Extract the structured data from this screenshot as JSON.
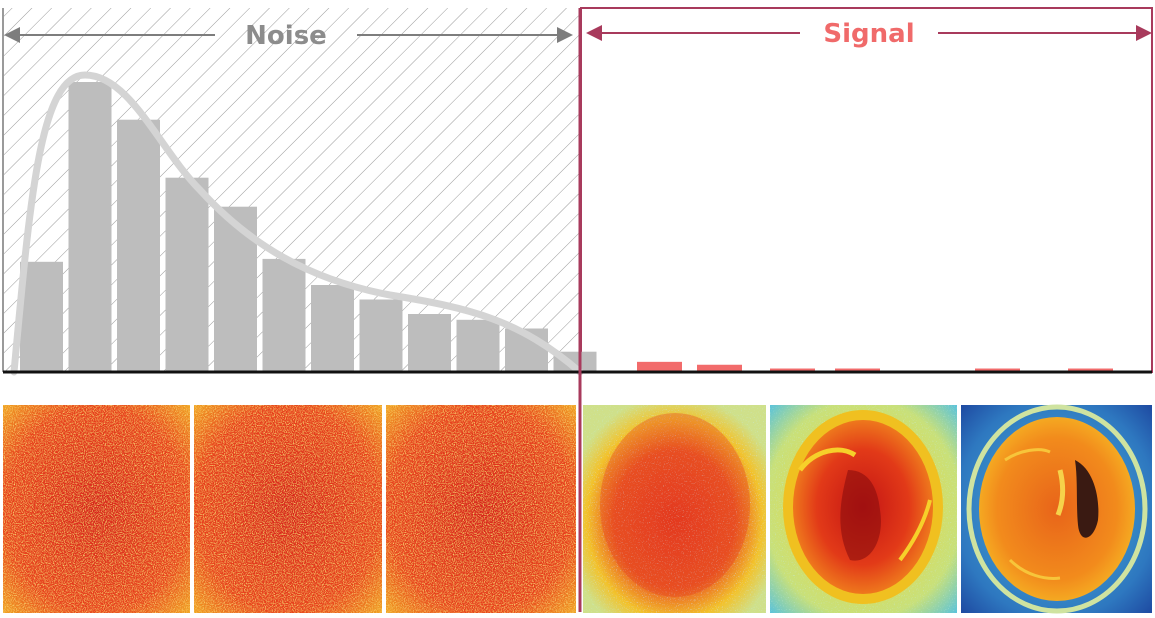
{
  "labels": {
    "noise": "Noise",
    "signal": "Signal"
  },
  "colors": {
    "noise_label": "#8c8c8c",
    "noise_arrow": "#7d7d7d",
    "signal_label": "#f06a6a",
    "signal_arrow": "#a83a5c",
    "divider": "#a83a5c",
    "noise_bar": "#bdbdbd",
    "signal_bar": "#f26b6b",
    "curve": "#d4d4d4",
    "hatch": "#9a9a9a",
    "baseline": "#111111"
  },
  "chart_data": {
    "type": "bar",
    "description_of_axes": "",
    "noise_bars": [
      0.38,
      1.0,
      0.87,
      0.67,
      0.57,
      0.39,
      0.3,
      0.25,
      0.2,
      0.18,
      0.15,
      0.07
    ],
    "signal_bars": [
      0.035,
      0.025,
      0.012,
      0.012,
      0.012,
      0.012
    ],
    "ylim": [
      0,
      1
    ]
  },
  "images": {
    "panels": [
      {
        "kind": "noise"
      },
      {
        "kind": "noise"
      },
      {
        "kind": "noise"
      },
      {
        "kind": "weak-signal"
      },
      {
        "kind": "medium-signal"
      },
      {
        "kind": "strong-signal"
      }
    ]
  }
}
